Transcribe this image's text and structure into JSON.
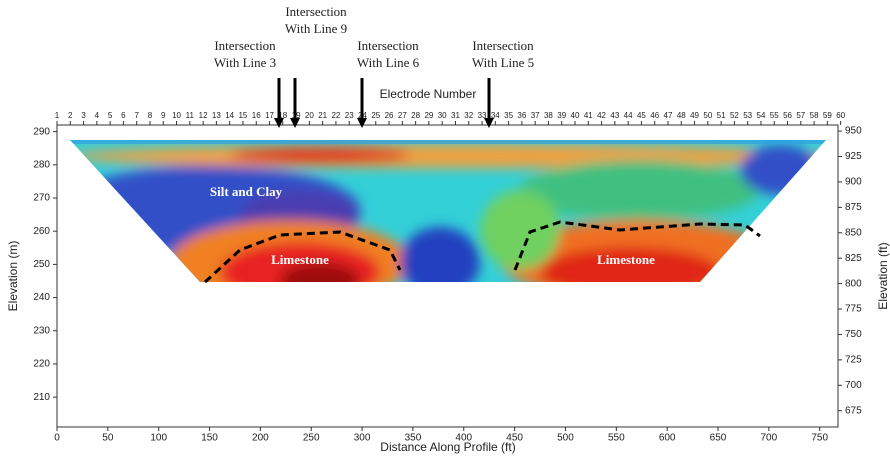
{
  "chart_data": {
    "type": "contour",
    "top_axis_label": "Electrode Number",
    "xlabel": "Distance Along Profile (ft)",
    "ylabel": "Elevation (m)",
    "y2label": "Elevation (ft)",
    "xlim": [
      0,
      768
    ],
    "xticks": [
      0,
      50,
      100,
      150,
      200,
      250,
      300,
      350,
      400,
      450,
      500,
      550,
      600,
      650,
      700,
      750
    ],
    "ylim": [
      201,
      292
    ],
    "yticks": [
      210,
      220,
      230,
      240,
      250,
      260,
      270,
      280,
      290
    ],
    "y2lim": [
      659,
      956
    ],
    "y2ticks": [
      675,
      700,
      725,
      750,
      775,
      800,
      825,
      850,
      875,
      900,
      925,
      950
    ],
    "x2lim": [
      1,
      59.8
    ],
    "x2ticks": [
      1,
      2,
      3,
      4,
      5,
      6,
      7,
      8,
      9,
      10,
      11,
      12,
      13,
      14,
      15,
      16,
      17,
      18,
      19,
      20,
      21,
      22,
      23,
      24,
      25,
      26,
      27,
      28,
      29,
      30,
      31,
      32,
      33,
      34,
      35,
      36,
      37,
      38,
      39,
      40,
      41,
      42,
      43,
      44,
      45,
      46,
      47,
      48,
      49,
      50,
      51,
      52,
      53,
      54,
      55,
      56,
      57,
      58,
      59,
      60
    ],
    "annotations": [
      {
        "lines": [
          "Intersection",
          "With Line 3"
        ]
      },
      {
        "lines": [
          "Intersection",
          "With Line 9"
        ]
      },
      {
        "lines": [
          "Intersection",
          "With Line 6"
        ]
      },
      {
        "lines": [
          "Intersection",
          "With Line 5"
        ]
      }
    ],
    "region_labels": [
      "Silt and Clay",
      "Limestone",
      "Limestone"
    ]
  }
}
